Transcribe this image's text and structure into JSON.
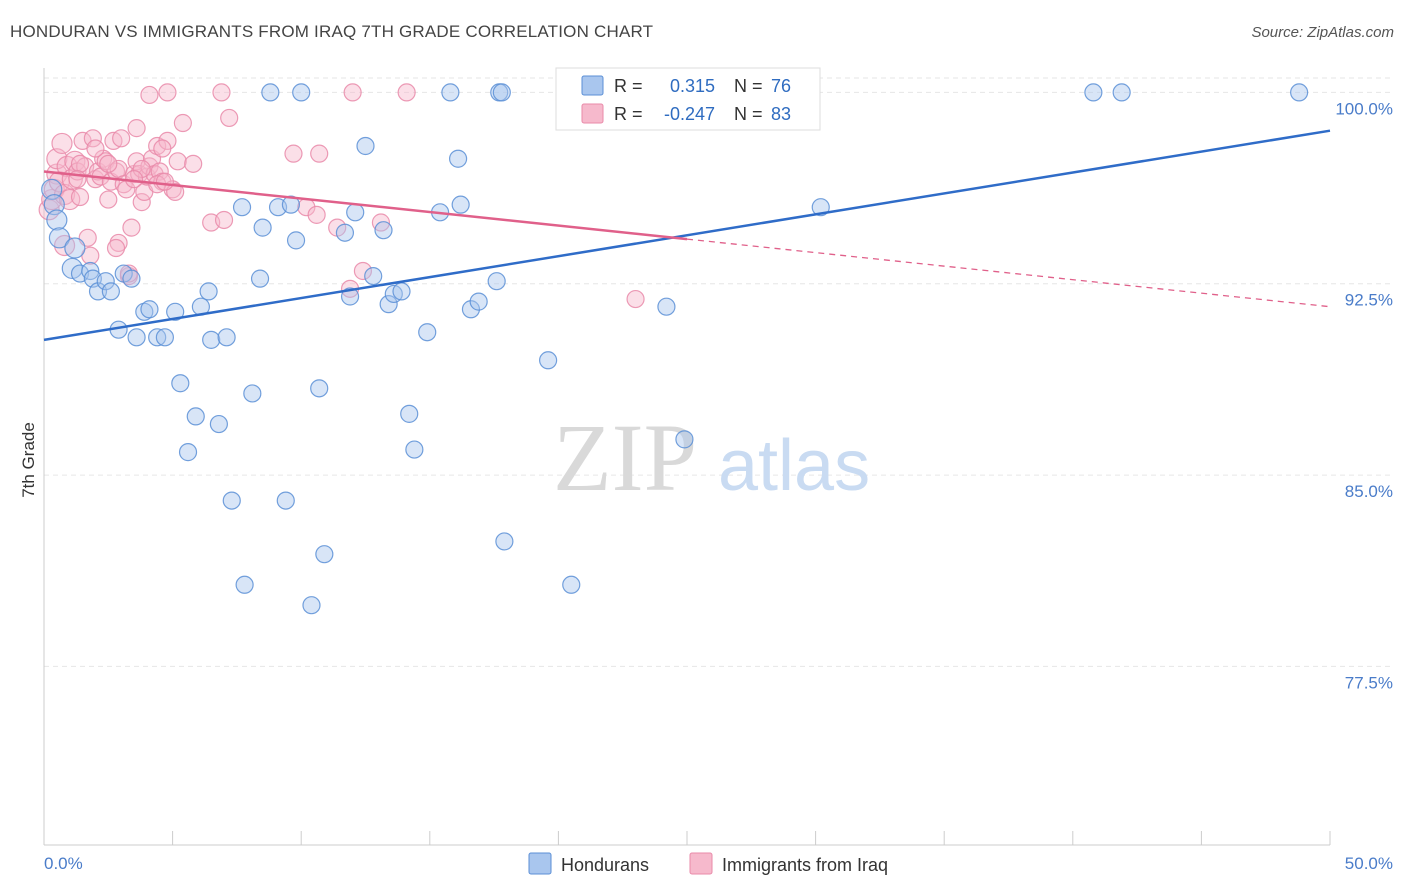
{
  "header": {
    "title": "HONDURAN VS IMMIGRANTS FROM IRAQ 7TH GRADE CORRELATION CHART",
    "source": "Source: ZipAtlas.com"
  },
  "watermark": {
    "zip": "ZIP",
    "atlas": "atlas"
  },
  "colors": {
    "blue_fill": "#a9c6ee",
    "blue_stroke": "#5b8fd6",
    "blue_line": "#2f6cc8",
    "pink_fill": "#f6b9cc",
    "pink_stroke": "#e98aa9",
    "pink_line": "#e0608a",
    "grid": "#e6e6e6",
    "tick_text": "#4a7cc9"
  },
  "chart_data": {
    "type": "scatter",
    "xlabel": "",
    "ylabel": "7th Grade",
    "xlim": [
      0,
      50
    ],
    "ylim": [
      70.5,
      100.8
    ],
    "x_tick_labels": {
      "left": "0.0%",
      "right": "50.0%"
    },
    "y_ticks": [
      {
        "value": 100.0,
        "label": "100.0%"
      },
      {
        "value": 92.5,
        "label": "92.5%"
      },
      {
        "value": 85.0,
        "label": "85.0%"
      },
      {
        "value": 77.5,
        "label": "77.5%"
      }
    ],
    "grid": true,
    "legend_position": "top-center",
    "legend": [
      {
        "r_label": "R =",
        "r_value": "0.315",
        "n_label": "N =",
        "n_value": "76"
      },
      {
        "r_label": "R =",
        "r_value": "-0.247",
        "n_label": "N =",
        "n_value": "83"
      }
    ],
    "bottom_legend": [
      "Hondurans",
      "Immigrants from Iraq"
    ],
    "series": [
      {
        "name": "Hondurans",
        "color": "#a9c6ee",
        "trend": {
          "x": [
            0,
            50
          ],
          "y": [
            90.3,
            98.5
          ],
          "dashed_from": null
        },
        "points": [
          [
            0.3,
            96.2
          ],
          [
            0.4,
            95.6
          ],
          [
            0.5,
            95.0
          ],
          [
            0.6,
            94.3
          ],
          [
            1.1,
            93.1
          ],
          [
            1.2,
            93.9
          ],
          [
            1.4,
            92.9
          ],
          [
            1.8,
            93.0
          ],
          [
            1.9,
            92.7
          ],
          [
            2.1,
            92.2
          ],
          [
            2.4,
            92.6
          ],
          [
            2.6,
            92.2
          ],
          [
            2.9,
            90.7
          ],
          [
            3.1,
            92.9
          ],
          [
            3.4,
            92.7
          ],
          [
            3.6,
            90.4
          ],
          [
            3.9,
            91.4
          ],
          [
            4.1,
            91.5
          ],
          [
            4.4,
            90.4
          ],
          [
            4.7,
            90.4
          ],
          [
            5.1,
            91.4
          ],
          [
            5.3,
            88.6
          ],
          [
            5.6,
            85.9
          ],
          [
            5.9,
            87.3
          ],
          [
            6.1,
            91.6
          ],
          [
            6.4,
            92.2
          ],
          [
            6.5,
            90.3
          ],
          [
            6.8,
            87.0
          ],
          [
            7.1,
            90.4
          ],
          [
            7.3,
            84.0
          ],
          [
            7.7,
            95.5
          ],
          [
            7.8,
            80.7
          ],
          [
            8.1,
            88.2
          ],
          [
            8.4,
            92.7
          ],
          [
            8.5,
            94.7
          ],
          [
            8.8,
            100.0
          ],
          [
            9.1,
            95.5
          ],
          [
            9.4,
            84.0
          ],
          [
            9.6,
            95.6
          ],
          [
            9.8,
            94.2
          ],
          [
            10.0,
            100.0
          ],
          [
            10.7,
            88.4
          ],
          [
            10.9,
            81.9
          ],
          [
            10.4,
            79.9
          ],
          [
            11.7,
            94.5
          ],
          [
            11.9,
            92.0
          ],
          [
            12.1,
            95.3
          ],
          [
            12.5,
            97.9
          ],
          [
            12.8,
            92.8
          ],
          [
            13.2,
            94.6
          ],
          [
            13.4,
            91.7
          ],
          [
            13.6,
            92.1
          ],
          [
            13.9,
            92.2
          ],
          [
            14.2,
            87.4
          ],
          [
            14.4,
            86.0
          ],
          [
            14.9,
            90.6
          ],
          [
            15.4,
            95.3
          ],
          [
            15.8,
            100.0
          ],
          [
            16.1,
            97.4
          ],
          [
            16.2,
            95.6
          ],
          [
            16.6,
            91.5
          ],
          [
            16.9,
            91.8
          ],
          [
            17.6,
            92.6
          ],
          [
            17.7,
            100.0
          ],
          [
            17.8,
            100.0
          ],
          [
            17.9,
            82.4
          ],
          [
            19.6,
            89.5
          ],
          [
            20.5,
            80.7
          ],
          [
            24.2,
            91.6
          ],
          [
            24.9,
            86.4
          ],
          [
            25.1,
            100.0
          ],
          [
            28.2,
            100.0
          ],
          [
            30.2,
            95.5
          ],
          [
            40.8,
            100.0
          ],
          [
            41.9,
            100.0
          ],
          [
            48.8,
            100.0
          ]
        ]
      },
      {
        "name": "Immigrants from Iraq",
        "color": "#f6b9cc",
        "trend": {
          "x": [
            0,
            50
          ],
          "y": [
            96.9,
            91.6
          ],
          "dashed_from": 25
        },
        "points": [
          [
            0.2,
            95.4
          ],
          [
            0.3,
            95.8
          ],
          [
            0.4,
            96.2
          ],
          [
            0.5,
            96.8
          ],
          [
            0.5,
            97.4
          ],
          [
            0.6,
            96.5
          ],
          [
            0.8,
            96.0
          ],
          [
            0.9,
            97.1
          ],
          [
            1.0,
            95.8
          ],
          [
            1.1,
            96.6
          ],
          [
            1.2,
            97.3
          ],
          [
            1.3,
            96.9
          ],
          [
            1.4,
            95.9
          ],
          [
            1.5,
            98.1
          ],
          [
            1.6,
            97.1
          ],
          [
            1.7,
            94.3
          ],
          [
            1.8,
            93.6
          ],
          [
            1.9,
            98.2
          ],
          [
            2.0,
            96.6
          ],
          [
            2.1,
            96.9
          ],
          [
            2.2,
            96.7
          ],
          [
            2.3,
            97.4
          ],
          [
            2.4,
            97.3
          ],
          [
            2.5,
            95.8
          ],
          [
            2.6,
            96.5
          ],
          [
            2.7,
            98.1
          ],
          [
            2.8,
            96.9
          ],
          [
            2.9,
            97.0
          ],
          [
            3.0,
            98.2
          ],
          [
            3.1,
            96.4
          ],
          [
            3.3,
            92.8
          ],
          [
            3.4,
            94.7
          ],
          [
            3.5,
            96.8
          ],
          [
            3.6,
            97.3
          ],
          [
            3.7,
            96.8
          ],
          [
            3.8,
            95.7
          ],
          [
            3.9,
            96.1
          ],
          [
            4.0,
            96.7
          ],
          [
            4.1,
            97.1
          ],
          [
            4.2,
            97.4
          ],
          [
            4.3,
            96.8
          ],
          [
            4.4,
            97.9
          ],
          [
            4.5,
            96.9
          ],
          [
            4.6,
            96.5
          ],
          [
            4.8,
            98.1
          ],
          [
            5.0,
            96.2
          ],
          [
            5.2,
            97.3
          ],
          [
            5.4,
            98.8
          ],
          [
            5.8,
            97.2
          ],
          [
            6.5,
            94.9
          ],
          [
            7.0,
            95.0
          ],
          [
            7.2,
            99.0
          ],
          [
            9.7,
            97.6
          ],
          [
            10.2,
            95.5
          ],
          [
            10.6,
            95.2
          ],
          [
            11.4,
            94.7
          ],
          [
            11.9,
            92.3
          ],
          [
            12.0,
            100.0
          ],
          [
            12.4,
            93.0
          ],
          [
            13.1,
            94.9
          ],
          [
            14.1,
            100.0
          ],
          [
            23.0,
            91.9
          ],
          [
            3.3,
            92.9
          ],
          [
            4.1,
            99.9
          ],
          [
            4.8,
            100.0
          ],
          [
            1.4,
            97.2
          ],
          [
            2.5,
            97.2
          ],
          [
            3.6,
            98.6
          ],
          [
            4.6,
            97.8
          ],
          [
            6.9,
            100.0
          ],
          [
            2.9,
            94.1
          ],
          [
            3.2,
            96.2
          ],
          [
            0.8,
            94.0
          ],
          [
            2.8,
            93.9
          ],
          [
            1.3,
            96.6
          ],
          [
            10.7,
            97.6
          ],
          [
            3.8,
            97.0
          ],
          [
            5.1,
            96.1
          ],
          [
            4.4,
            96.4
          ],
          [
            3.5,
            96.6
          ],
          [
            2.0,
            97.8
          ],
          [
            4.7,
            96.5
          ],
          [
            0.7,
            98.0
          ]
        ]
      }
    ]
  }
}
